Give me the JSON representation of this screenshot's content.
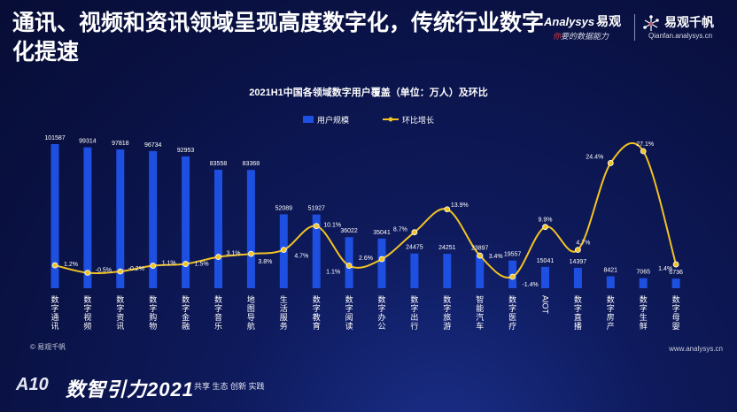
{
  "headline": "通讯、视频和资讯领域呈现高度数字化，传统行业数字化提速",
  "brand": {
    "analysys_name": "Analysys",
    "analysys_cn": "易观",
    "tagline_red": "你",
    "tagline_rest": "要的数据能力",
    "qianfan_cn": "易观千帆",
    "qianfan_url": "Qianfan.analysys.cn"
  },
  "source": "© 易观千帆",
  "url_bottom": "www.analysys.cn",
  "footer": {
    "logo_text": "A10",
    "title": "数智引力2021",
    "slogan": "共享 生态 创新 实践"
  },
  "colors": {
    "bar": "#1d4fe0",
    "line": "#f2c322",
    "text": "#ffffff"
  },
  "chart_data": {
    "type": "bar",
    "title": "2021H1中国各领域数字用户覆盖（单位：万人）及环比",
    "xlabel": "",
    "ylabel": "",
    "grid": false,
    "legend_position": "top-center",
    "categories": [
      "数字通讯",
      "数字视频",
      "数字资讯",
      "数字购物",
      "数字金融",
      "数字音乐",
      "地图导航",
      "生活服务",
      "数字教育",
      "数字阅读",
      "数字办公",
      "数字出行",
      "数字旅游",
      "智能汽车",
      "数字医疗",
      "AIOT",
      "数字直播",
      "数字房产",
      "数字生鲜",
      "数字母婴"
    ],
    "series": [
      {
        "name": "用户规模",
        "type": "bar",
        "values": [
          101587,
          99314,
          97818,
          96734,
          92953,
          83558,
          83368,
          52089,
          51927,
          36022,
          35041,
          24475,
          24251,
          23897,
          19557,
          15041,
          14397,
          8421,
          7065,
          6736
        ],
        "value_labels": [
          "101587",
          "99314",
          "97818",
          "96734",
          "92953",
          "83558",
          "83368",
          "52089",
          "51927",
          "36022",
          "35041",
          "24475",
          "24251",
          "23897",
          "19557",
          "15041",
          "14397",
          "8421",
          "7065",
          "6736"
        ]
      },
      {
        "name": "环比增长",
        "type": "line",
        "values": [
          1.2,
          -0.5,
          -0.2,
          1.1,
          1.5,
          3.1,
          3.8,
          4.7,
          10.1,
          1.1,
          2.6,
          8.7,
          13.9,
          3.4,
          -1.4,
          9.9,
          4.7,
          24.4,
          27.1,
          1.4
        ],
        "value_labels": [
          "1.2%",
          "-0.5%",
          "-0.2%",
          "1.1%",
          "1.5%",
          "3.1%",
          "3.8%",
          "4.7%",
          "10.1%",
          "1.1%",
          "2.6%",
          "8.7%",
          "13.9%",
          "3.4%",
          "-1.4%",
          "9.9%",
          "4.7%",
          "24.4%",
          "27.1%",
          "1.4%"
        ]
      }
    ],
    "ylim_bar": [
      0,
      101587
    ],
    "ylim_line": [
      -1.4,
      27.1
    ]
  }
}
